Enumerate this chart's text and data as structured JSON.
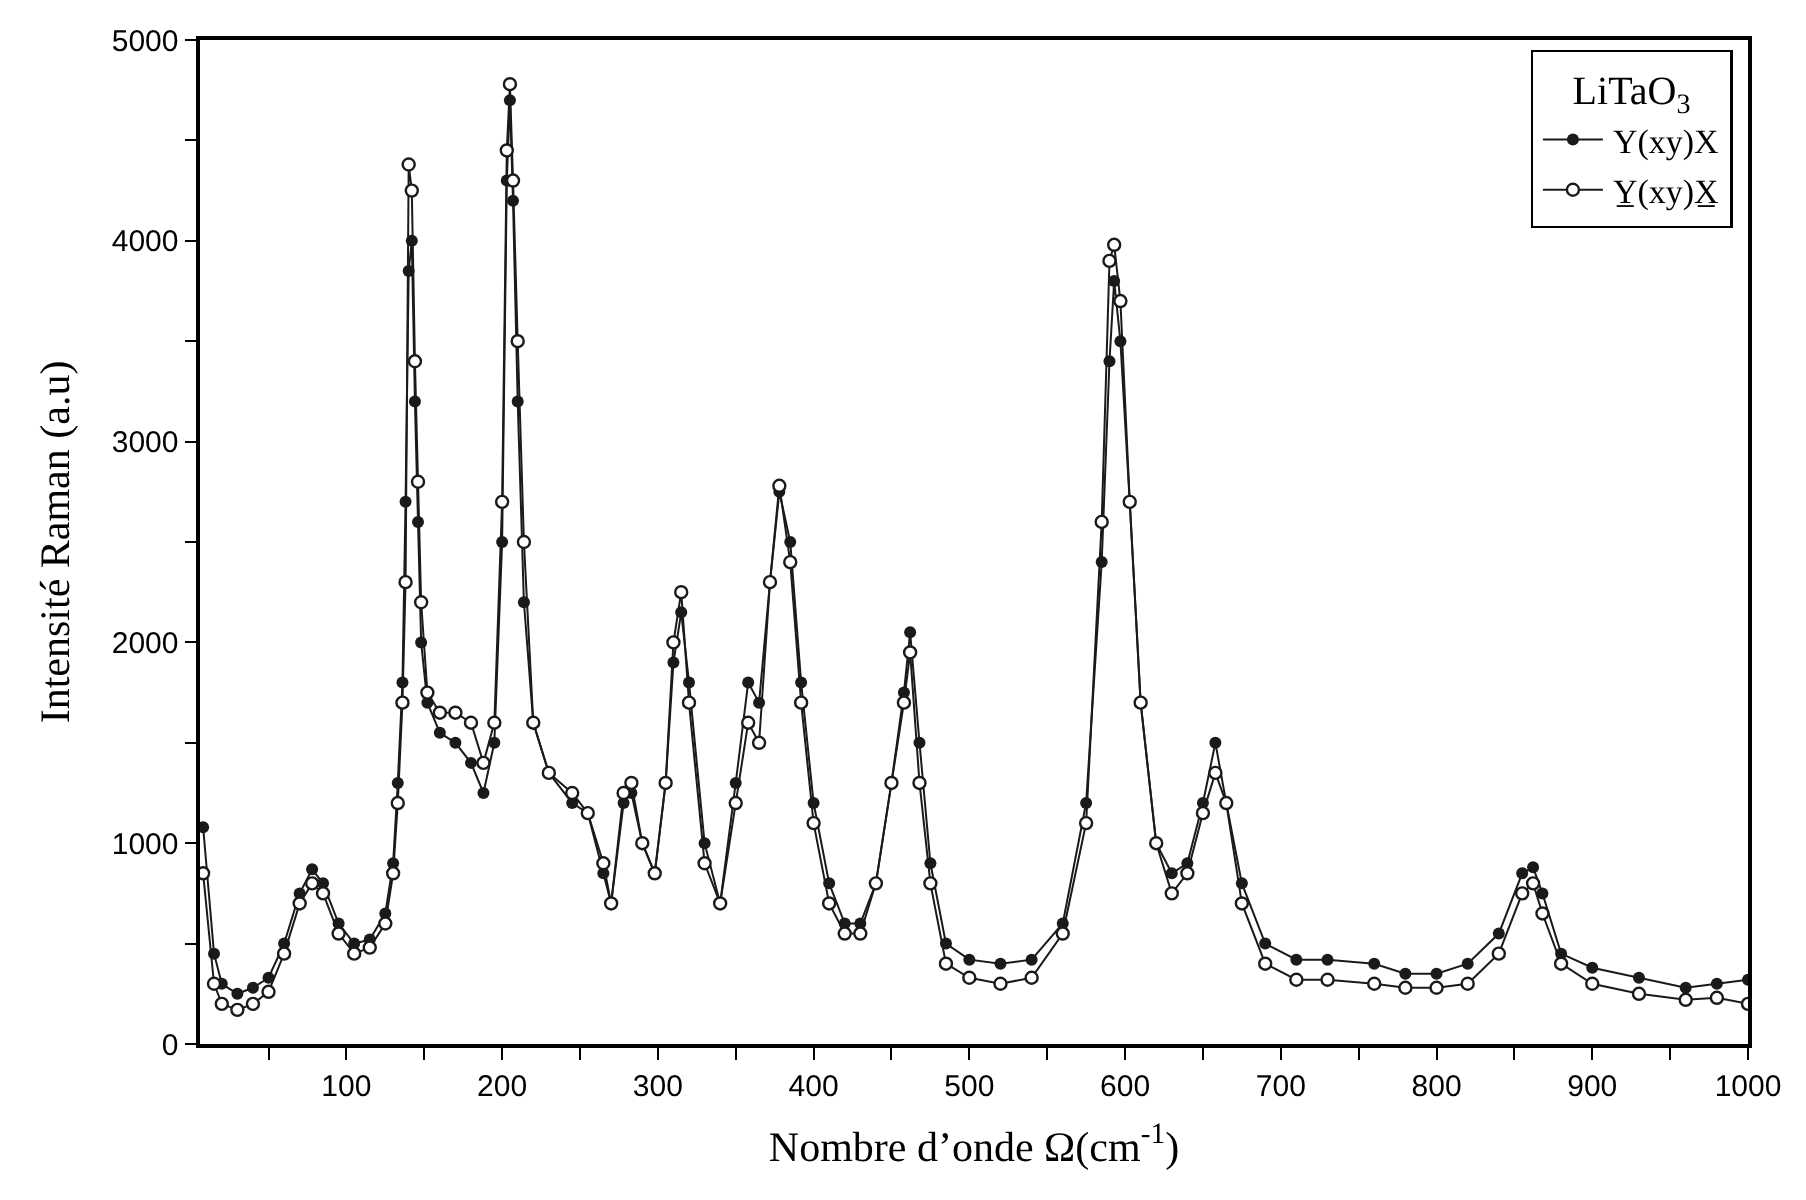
{
  "chart_data": {
    "type": "line",
    "xlabel": "Nombre d’onde Ω(cm$^{-1}$)",
    "ylabel": "Intensité Raman (a.u)",
    "legend_title": "LiTaO$_{3}$",
    "x": [
      8,
      15,
      20,
      30,
      40,
      50,
      60,
      70,
      78,
      85,
      95,
      105,
      115,
      125,
      130,
      133,
      136,
      138,
      140,
      142,
      144,
      146,
      148,
      152,
      160,
      170,
      180,
      188,
      195,
      200,
      203,
      205,
      207,
      210,
      214,
      220,
      230,
      245,
      255,
      265,
      270,
      278,
      283,
      290,
      298,
      305,
      310,
      315,
      320,
      330,
      340,
      350,
      358,
      365,
      372,
      378,
      385,
      392,
      400,
      410,
      420,
      430,
      440,
      450,
      458,
      462,
      468,
      475,
      485,
      500,
      520,
      540,
      560,
      575,
      585,
      590,
      593,
      597,
      603,
      610,
      620,
      630,
      640,
      650,
      658,
      665,
      675,
      690,
      710,
      730,
      760,
      780,
      800,
      820,
      840,
      855,
      862,
      868,
      880,
      900,
      930,
      960,
      980,
      1000
    ],
    "series": [
      {
        "name": "Y(xy)X",
        "color": "#1a1a1a",
        "marker": "circle",
        "values": [
          1080,
          450,
          300,
          250,
          280,
          330,
          500,
          750,
          870,
          800,
          600,
          500,
          520,
          650,
          900,
          1300,
          1800,
          2700,
          3850,
          4000,
          3200,
          2600,
          2000,
          1700,
          1550,
          1500,
          1400,
          1250,
          1500,
          2500,
          4300,
          4700,
          4200,
          3200,
          2200,
          1600,
          1350,
          1200,
          1150,
          850,
          700,
          1200,
          1250,
          1000,
          850,
          1300,
          1900,
          2150,
          1800,
          1000,
          700,
          1300,
          1800,
          1700,
          2300,
          2750,
          2500,
          1800,
          1200,
          800,
          600,
          600,
          800,
          1300,
          1750,
          2050,
          1500,
          900,
          500,
          420,
          400,
          420,
          600,
          1200,
          2400,
          3400,
          3800,
          3500,
          2700,
          1700,
          1000,
          850,
          900,
          1200,
          1500,
          1200,
          800,
          500,
          420,
          420,
          400,
          350,
          350,
          400,
          550,
          850,
          880,
          750,
          450,
          380,
          330,
          280,
          300,
          320
        ]
      },
      {
        "name": "Y̲(xy)X̲",
        "color": "#1a1a1a",
        "marker": "circle-open",
        "values": [
          850,
          300,
          200,
          170,
          200,
          260,
          450,
          700,
          800,
          750,
          550,
          450,
          480,
          600,
          850,
          1200,
          1700,
          2300,
          4380,
          4250,
          3400,
          2800,
          2200,
          1750,
          1650,
          1650,
          1600,
          1400,
          1600,
          2700,
          4450,
          4780,
          4300,
          3500,
          2500,
          1600,
          1350,
          1250,
          1150,
          900,
          700,
          1250,
          1300,
          1000,
          850,
          1300,
          2000,
          2250,
          1700,
          900,
          700,
          1200,
          1600,
          1500,
          2300,
          2780,
          2400,
          1700,
          1100,
          700,
          550,
          550,
          800,
          1300,
          1700,
          1950,
          1300,
          800,
          400,
          330,
          300,
          330,
          550,
          1100,
          2600,
          3900,
          3980,
          3700,
          2700,
          1700,
          1000,
          750,
          850,
          1150,
          1350,
          1200,
          700,
          400,
          320,
          320,
          300,
          280,
          280,
          300,
          450,
          750,
          800,
          650,
          400,
          300,
          250,
          220,
          230,
          200
        ]
      }
    ],
    "xlim": [
      6,
      1000
    ],
    "ylim": [
      0,
      5000
    ],
    "xticks": [
      {
        "value": 50,
        "label": null
      },
      100,
      {
        "value": 150,
        "label": null
      },
      200,
      {
        "value": 250,
        "label": null
      },
      300,
      {
        "value": 350,
        "label": null
      },
      400,
      {
        "value": 450,
        "label": null
      },
      500,
      {
        "value": 550,
        "label": null
      },
      600,
      {
        "value": 650,
        "label": null
      },
      700,
      {
        "value": 750,
        "label": null
      },
      800,
      {
        "value": 850,
        "label": null
      },
      900,
      {
        "value": 950,
        "label": null
      },
      1000
    ],
    "yticks": [
      0,
      {
        "value": 500,
        "label": null
      },
      1000,
      {
        "value": 1500,
        "label": null
      },
      2000,
      {
        "value": 2500,
        "label": null
      },
      3000,
      {
        "value": 3500,
        "label": null
      },
      4000,
      {
        "value": 4500,
        "label": null
      },
      5000
    ],
    "legend": "top right",
    "line_style": "solid"
  }
}
